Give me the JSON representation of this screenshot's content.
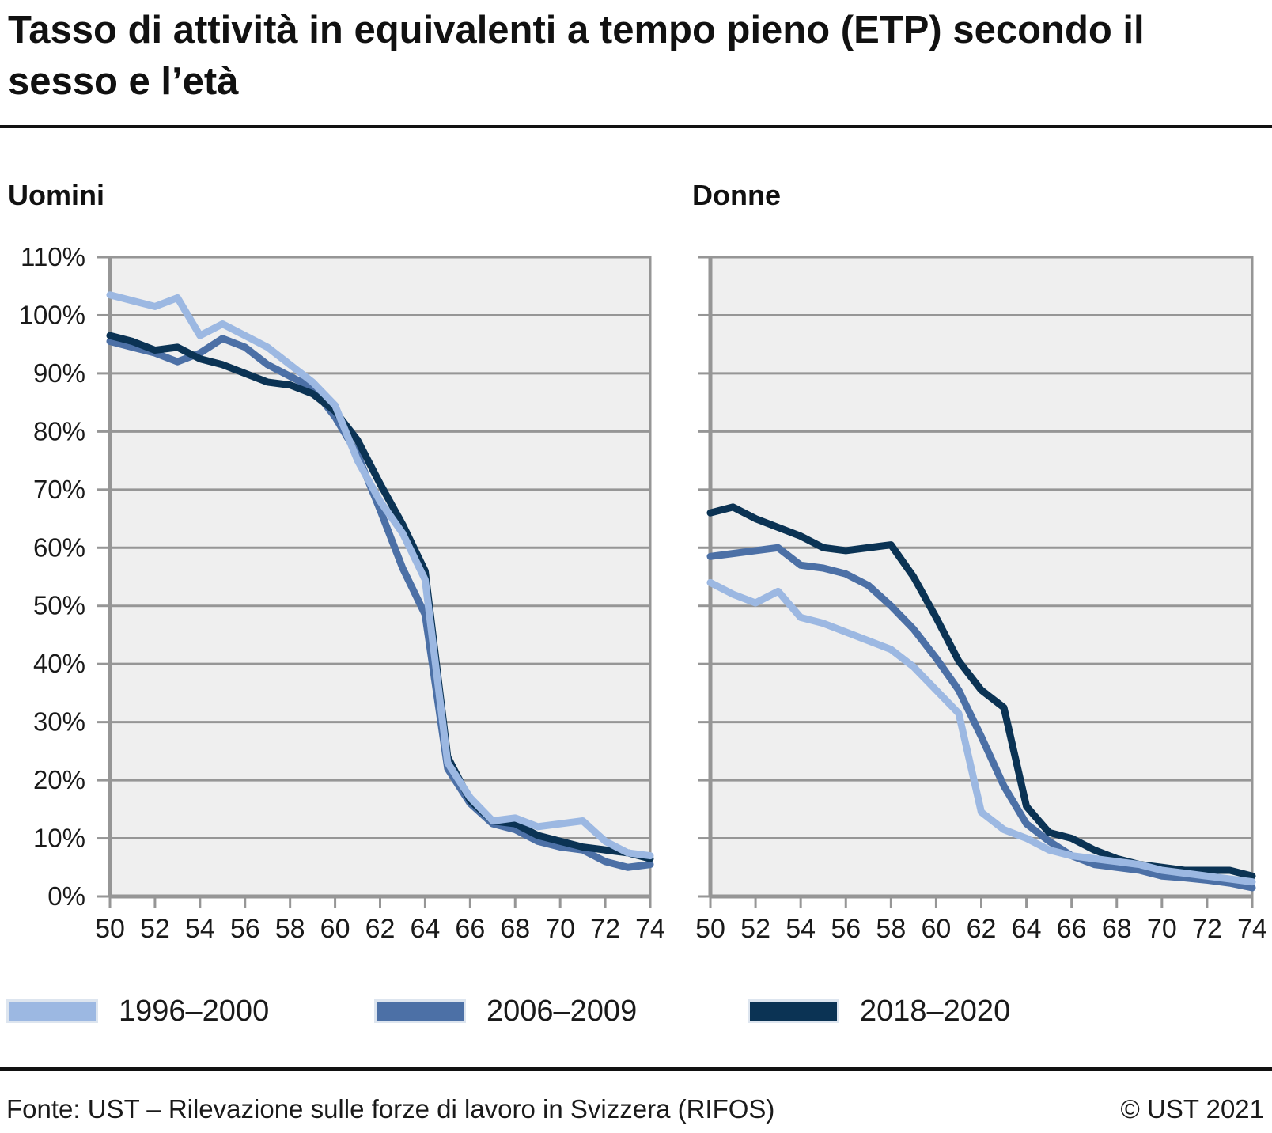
{
  "header": {
    "title": "Tasso di attività in equivalenti a tempo pieno (ETP) secondo il sesso e l’età"
  },
  "legend": [
    {
      "label": "1996–2000",
      "color": "#9cb8e2"
    },
    {
      "label": "2006–2009",
      "color": "#4c70a6"
    },
    {
      "label": "2018–2020",
      "color": "#0b3354"
    }
  ],
  "footer": {
    "source": "Fonte: UST – Rilevazione sulle forze di lavoro in Svizzera (RIFOS)",
    "copyright": "© UST 2021"
  },
  "colors": {
    "plot_background": "#efefef",
    "grid": "#969696",
    "axis": "#969696",
    "label_text": "#1a1a1a"
  },
  "chart_data": [
    {
      "type": "line",
      "title": "Uomini",
      "xlabel": "",
      "ylabel": "",
      "xlim": [
        50,
        74
      ],
      "ylim": [
        0,
        110
      ],
      "grid": true,
      "show_y_labels": true,
      "x_ticks": [
        50,
        52,
        54,
        56,
        58,
        60,
        62,
        64,
        66,
        68,
        70,
        72,
        74
      ],
      "y_ticks": [
        0,
        10,
        20,
        30,
        40,
        50,
        60,
        70,
        80,
        90,
        100,
        110
      ],
      "y_tick_labels": [
        "0%",
        "10%",
        "20%",
        "30%",
        "40%",
        "50%",
        "60%",
        "70%",
        "80%",
        "90%",
        "100%",
        "110%"
      ],
      "x": [
        50,
        51,
        52,
        53,
        54,
        55,
        56,
        57,
        58,
        59,
        60,
        61,
        62,
        63,
        64,
        65,
        66,
        67,
        68,
        69,
        70,
        71,
        72,
        73,
        74
      ],
      "series": [
        {
          "name": "1996–2000",
          "color": "#9cb8e2",
          "values": [
            103.5,
            102.5,
            101.5,
            103,
            96.5,
            98.5,
            96.5,
            94.5,
            91.5,
            88.5,
            84.5,
            75,
            68,
            62.5,
            54.5,
            23,
            17,
            13,
            13.5,
            12,
            12.5,
            13,
            9.5,
            7.5,
            7
          ]
        },
        {
          "name": "2006–2009",
          "color": "#4c70a6",
          "values": [
            95.5,
            94.5,
            93.5,
            92,
            93.5,
            96,
            94.5,
            91.5,
            89.5,
            87.5,
            82.5,
            76,
            66.5,
            56.5,
            48.5,
            22,
            16,
            12.5,
            11.5,
            9.5,
            8.5,
            8,
            6,
            5,
            5.5
          ]
        },
        {
          "name": "2018–2020",
          "color": "#0b3354",
          "values": [
            96.5,
            95.5,
            94,
            94.5,
            92.5,
            91.5,
            90,
            88.5,
            88,
            86.5,
            83.5,
            78.5,
            71,
            64,
            56,
            24,
            16.5,
            13,
            12.5,
            10.5,
            9.5,
            8.5,
            8,
            7.5,
            6.5
          ]
        }
      ]
    },
    {
      "type": "line",
      "title": "Donne",
      "xlabel": "",
      "ylabel": "",
      "xlim": [
        50,
        74
      ],
      "ylim": [
        0,
        110
      ],
      "grid": true,
      "show_y_labels": false,
      "x_ticks": [
        50,
        52,
        54,
        56,
        58,
        60,
        62,
        64,
        66,
        68,
        70,
        72,
        74
      ],
      "y_ticks": [
        0,
        10,
        20,
        30,
        40,
        50,
        60,
        70,
        80,
        90,
        100,
        110
      ],
      "y_tick_labels": [
        "0%",
        "10%",
        "20%",
        "30%",
        "40%",
        "50%",
        "60%",
        "70%",
        "80%",
        "90%",
        "100%",
        "110%"
      ],
      "x": [
        50,
        51,
        52,
        53,
        54,
        55,
        56,
        57,
        58,
        59,
        60,
        61,
        62,
        63,
        64,
        65,
        66,
        67,
        68,
        69,
        70,
        71,
        72,
        73,
        74
      ],
      "series": [
        {
          "name": "1996–2000",
          "color": "#9cb8e2",
          "values": [
            54,
            52,
            50.5,
            52.5,
            48,
            47,
            45.5,
            44,
            42.5,
            39.5,
            35.5,
            31.5,
            14.5,
            11.5,
            10,
            8,
            7,
            6.5,
            6,
            5.5,
            4.5,
            4,
            3.5,
            3,
            2.5
          ]
        },
        {
          "name": "2006–2009",
          "color": "#4c70a6",
          "values": [
            58.5,
            59,
            59.5,
            60,
            57,
            56.5,
            55.5,
            53.5,
            50,
            46,
            41,
            35.5,
            27.5,
            19,
            12.5,
            9.5,
            7,
            5.5,
            5,
            4.5,
            3.5,
            3.2,
            2.8,
            2.3,
            1.5
          ]
        },
        {
          "name": "2018–2020",
          "color": "#0b3354",
          "values": [
            66,
            67,
            65,
            63.5,
            62,
            60,
            59.5,
            60,
            60.5,
            55,
            48,
            40.5,
            35.5,
            32.5,
            15.5,
            11,
            10,
            8,
            6.5,
            5.5,
            5,
            4.5,
            4.5,
            4.5,
            3.5
          ]
        }
      ]
    }
  ]
}
